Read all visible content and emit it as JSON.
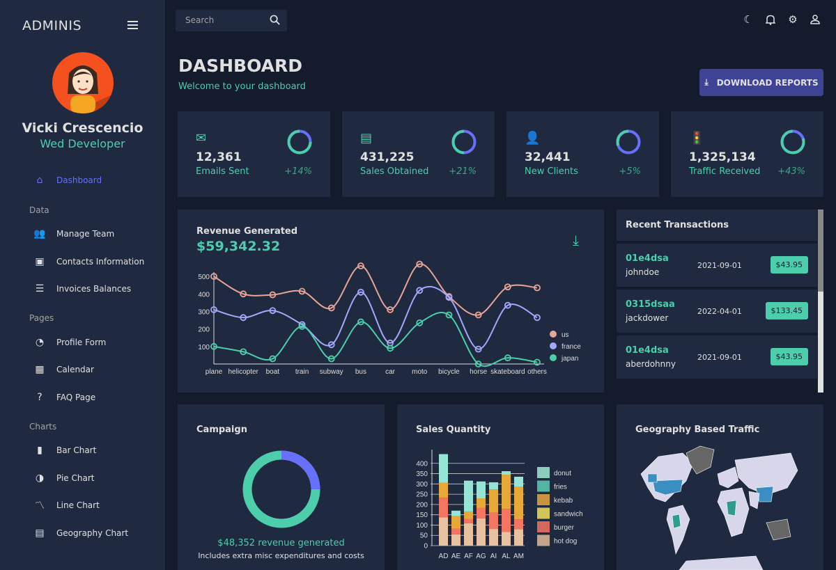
{
  "brand": "ADMINIS",
  "user": {
    "name": "Vicki Crescencio",
    "role": "Wed Developer"
  },
  "sidebar": {
    "items": [
      {
        "label": "Dashboard",
        "icon": "home-icon",
        "active": true
      },
      {
        "section": "Data"
      },
      {
        "label": "Manage Team",
        "icon": "people-icon"
      },
      {
        "label": "Contacts Information",
        "icon": "contacts-icon"
      },
      {
        "label": "Invoices Balances",
        "icon": "receipt-icon"
      },
      {
        "section": "Pages"
      },
      {
        "label": "Profile Form",
        "icon": "person-icon"
      },
      {
        "label": "Calendar",
        "icon": "calendar-icon"
      },
      {
        "label": "FAQ Page",
        "icon": "help-icon"
      },
      {
        "section": "Charts"
      },
      {
        "label": "Bar Chart",
        "icon": "bar-chart-icon"
      },
      {
        "label": "Pie Chart",
        "icon": "pie-chart-icon"
      },
      {
        "label": "Line Chart",
        "icon": "line-chart-icon"
      },
      {
        "label": "Geography Chart",
        "icon": "map-icon"
      }
    ]
  },
  "search": {
    "placeholder": "Search"
  },
  "header": {
    "title": "DASHBOARD",
    "subtitle": "Welcome to your dashboard",
    "download": "DOWNLOAD REPORTS"
  },
  "stats": [
    {
      "value": "12,361",
      "label": "Emails Sent",
      "change": "+14%",
      "progress": 0.75,
      "icon": "email-icon"
    },
    {
      "value": "431,225",
      "label": "Sales Obtained",
      "change": "+21%",
      "progress": 0.5,
      "icon": "point-of-sale-icon"
    },
    {
      "value": "32,441",
      "label": "New Clients",
      "change": "+5%",
      "progress": 0.3,
      "icon": "person-add-icon"
    },
    {
      "value": "1,325,134",
      "label": "Traffic Received",
      "change": "+43%",
      "progress": 0.8,
      "icon": "traffic-icon"
    }
  ],
  "revenue": {
    "title": "Revenue Generated",
    "amount": "$59,342.32"
  },
  "transactions": {
    "title": "Recent Transactions",
    "items": [
      {
        "id": "01e4dsa",
        "user": "johndoe",
        "date": "2021-09-01",
        "cost": "$43.95"
      },
      {
        "id": "0315dsaa",
        "user": "jackdower",
        "date": "2022-04-01",
        "cost": "$133.45"
      },
      {
        "id": "01e4dsa",
        "user": "aberdohnny",
        "date": "2021-09-01",
        "cost": "$43.95"
      }
    ]
  },
  "campaign": {
    "title": "Campaign",
    "revenue": "$48,352 revenue generated",
    "note": "Includes extra misc expenditures and costs",
    "progress": 0.75
  },
  "sales_title": "Sales Quantity",
  "geo_title": "Geography Based Traffic",
  "colors": {
    "green": "#4cceac",
    "blue": "#6870fa",
    "bg": "#141b2d",
    "panel": "#1f2a40"
  },
  "chart_data": [
    {
      "type": "line",
      "categories": [
        "plane",
        "helicopter",
        "boat",
        "train",
        "subway",
        "bus",
        "car",
        "moto",
        "bicycle",
        "horse",
        "skateboard",
        "others"
      ],
      "ylim": [
        0,
        580
      ],
      "yticks": [
        100,
        200,
        300,
        400,
        500
      ],
      "legend": "right",
      "series": [
        {
          "name": "us",
          "color": "#e8a598",
          "values": [
            500,
            400,
            395,
            415,
            320,
            560,
            310,
            570,
            385,
            280,
            440,
            435
          ]
        },
        {
          "name": "france",
          "color": "#a4a9fc",
          "values": [
            310,
            265,
            305,
            225,
            110,
            410,
            120,
            420,
            380,
            85,
            335,
            265
          ]
        },
        {
          "name": "japan",
          "color": "#4cceac",
          "values": [
            100,
            70,
            30,
            215,
            30,
            240,
            90,
            235,
            280,
            0,
            35,
            10
          ]
        }
      ]
    },
    {
      "type": "bar",
      "stacked": true,
      "categories": [
        "AD",
        "AE",
        "AF",
        "AG",
        "AI",
        "AL",
        "AM"
      ],
      "ylim": [
        0,
        450
      ],
      "yticks": [
        0,
        50,
        100,
        150,
        200,
        250,
        300,
        350,
        400
      ],
      "legend": "right",
      "series": [
        {
          "name": "hot dog",
          "color": "#e8c1a0",
          "values": [
            137,
            55,
            109,
            133,
            81,
            66,
            80
          ]
        },
        {
          "name": "burger",
          "color": "#f47560",
          "values": [
            96,
            28,
            20,
            50,
            80,
            113,
            48
          ]
        },
        {
          "name": "sandwich",
          "color": "#e8c95a",
          "values": [
            0,
            0,
            0,
            0,
            0,
            0,
            0
          ]
        },
        {
          "name": "kebab",
          "color": "#e8a838",
          "values": [
            72,
            60,
            37,
            47,
            112,
            166,
            157
          ]
        },
        {
          "name": "fries",
          "color": "#61cdbb",
          "values": [
            0,
            0,
            0,
            0,
            0,
            0,
            0
          ]
        },
        {
          "name": "donut",
          "color": "#97e3d5",
          "values": [
            140,
            27,
            150,
            82,
            35,
            17,
            50
          ]
        }
      ],
      "legend_order": [
        "donut",
        "fries",
        "kebab",
        "sandwich",
        "burger",
        "hot dog"
      ],
      "legend_colors": [
        "#8ccbbd",
        "#55b5a5",
        "#c8943f",
        "#d0c45a",
        "#d4685e",
        "#c4a58c"
      ]
    }
  ]
}
